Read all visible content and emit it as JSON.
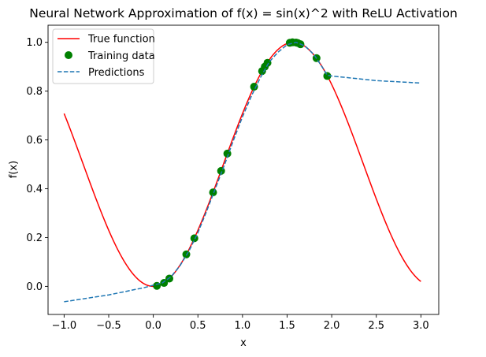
{
  "chart_data": {
    "type": "line",
    "title": "Neural Network Approximation of f(x) = sin(x)^2 with ReLU Activation",
    "xlabel": "x",
    "ylabel": "f(x)",
    "xlim": [
      -1.18,
      3.2
    ],
    "ylim": [
      -0.115,
      1.07
    ],
    "xticks": [
      -1.0,
      -0.5,
      0.0,
      0.5,
      1.0,
      1.5,
      2.0,
      2.5,
      3.0
    ],
    "xtick_labels": [
      "−1.0",
      "−0.5",
      "0.0",
      "0.5",
      "1.0",
      "1.5",
      "2.0",
      "2.5",
      "3.0"
    ],
    "yticks": [
      0.0,
      0.2,
      0.4,
      0.6,
      0.8,
      1.0
    ],
    "ytick_labels": [
      "0.0",
      "0.2",
      "0.4",
      "0.6",
      "0.8",
      "1.0"
    ],
    "grid": false,
    "legend_position": "upper-left",
    "series": [
      {
        "name": "True function",
        "kind": "line",
        "style": "solid",
        "color": "#ff0000",
        "function": "sin(x)^2",
        "x_range": [
          -1.0,
          3.0
        ]
      },
      {
        "name": "Training data",
        "kind": "scatter",
        "color": "#008000",
        "x": [
          0.04,
          0.12,
          0.18,
          0.37,
          0.46,
          0.67,
          0.76,
          0.83,
          1.13,
          1.22,
          1.25,
          1.28,
          1.53,
          1.56,
          1.6,
          1.62,
          1.65,
          1.83,
          1.95
        ],
        "y": [
          0.002,
          0.014,
          0.032,
          0.131,
          0.197,
          0.385,
          0.473,
          0.544,
          0.818,
          0.882,
          0.9,
          0.916,
          0.998,
          1.0,
          0.999,
          0.997,
          0.992,
          0.935,
          0.862
        ]
      },
      {
        "name": "Predictions",
        "kind": "line",
        "style": "dashed",
        "color": "#1f77b4",
        "x": [
          -1.0,
          -0.5,
          -0.3,
          -0.1,
          0.0,
          0.1,
          0.2,
          0.3,
          0.4,
          0.5,
          0.6,
          0.7,
          0.8,
          0.9,
          1.0,
          1.1,
          1.2,
          1.3,
          1.4,
          1.5,
          1.6,
          1.7,
          1.8,
          1.9,
          1.95,
          2.0,
          2.5,
          3.0
        ],
        "y": [
          -0.063,
          -0.035,
          -0.02,
          -0.005,
          0.005,
          0.014,
          0.04,
          0.085,
          0.145,
          0.22,
          0.31,
          0.405,
          0.5,
          0.6,
          0.695,
          0.78,
          0.855,
          0.92,
          0.96,
          0.99,
          1.0,
          0.985,
          0.95,
          0.895,
          0.865,
          0.862,
          0.843,
          0.833
        ]
      }
    ]
  }
}
